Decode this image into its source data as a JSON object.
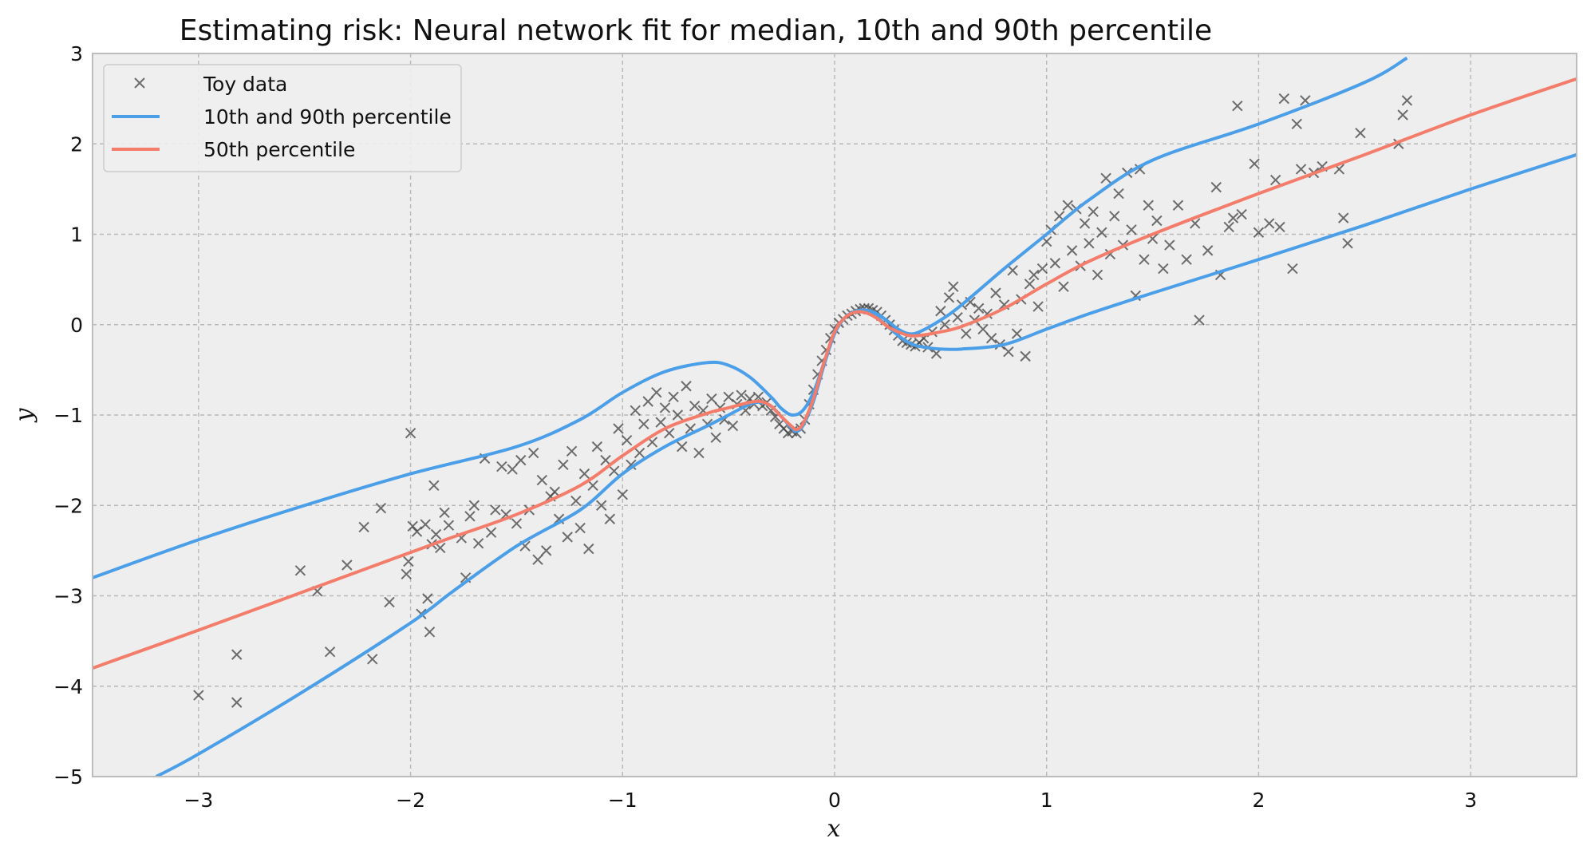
{
  "chart_data": {
    "type": "line",
    "title": "Estimating risk: Neural network fit for median, 10th and 90th percentile",
    "xlabel": "x",
    "ylabel": "y",
    "xlim": [
      -3.5,
      3.5
    ],
    "ylim": [
      -5,
      3
    ],
    "xticks": [
      -3,
      -2,
      -1,
      0,
      1,
      2,
      3
    ],
    "xtick_labels": [
      "−3",
      "−2",
      "−1",
      "0",
      "1",
      "2",
      "3"
    ],
    "yticks": [
      -5,
      -4,
      -3,
      -2,
      -1,
      0,
      1,
      2,
      3
    ],
    "ytick_labels": [
      "−5",
      "−4",
      "−3",
      "−2",
      "−1",
      "0",
      "1",
      "2",
      "3"
    ],
    "grid": true,
    "legend_position": "top-left",
    "colors": {
      "background": "#eeeeee",
      "grid": "#b8b8b8",
      "frame": "#bcbcbc",
      "scatter": "#404040",
      "percentile_10_90": "#4a9fe8",
      "percentile_50": "#f47c6a"
    },
    "series": [
      {
        "name": "Toy data",
        "kind": "scatter",
        "marker": "x",
        "points": [
          [
            -3.0,
            -4.1
          ],
          [
            -2.82,
            -3.65
          ],
          [
            -2.82,
            -4.18
          ],
          [
            -2.52,
            -2.72
          ],
          [
            -2.44,
            -2.95
          ],
          [
            -2.38,
            -3.62
          ],
          [
            -2.3,
            -2.66
          ],
          [
            -2.22,
            -2.24
          ],
          [
            -2.18,
            -3.7
          ],
          [
            -2.14,
            -2.03
          ],
          [
            -2.1,
            -3.07
          ],
          [
            -2.02,
            -2.76
          ],
          [
            -2.01,
            -2.62
          ],
          [
            -2.0,
            -1.2
          ],
          [
            -1.99,
            -2.23
          ],
          [
            -1.97,
            -2.29
          ],
          [
            -1.95,
            -3.2
          ],
          [
            -1.93,
            -2.21
          ],
          [
            -1.92,
            -3.03
          ],
          [
            -1.91,
            -3.4
          ],
          [
            -1.9,
            -2.43
          ],
          [
            -1.89,
            -1.78
          ],
          [
            -1.88,
            -2.32
          ],
          [
            -1.86,
            -2.47
          ],
          [
            -1.84,
            -2.08
          ],
          [
            -1.82,
            -2.22
          ],
          [
            -1.76,
            -2.36
          ],
          [
            -1.74,
            -2.8
          ],
          [
            -1.72,
            -2.12
          ],
          [
            -1.7,
            -2.0
          ],
          [
            -1.68,
            -2.42
          ],
          [
            -1.65,
            -1.48
          ],
          [
            -1.62,
            -2.3
          ],
          [
            -1.6,
            -2.05
          ],
          [
            -1.57,
            -1.57
          ],
          [
            -1.55,
            -2.1
          ],
          [
            -1.52,
            -1.6
          ],
          [
            -1.5,
            -2.2
          ],
          [
            -1.48,
            -1.5
          ],
          [
            -1.46,
            -2.45
          ],
          [
            -1.44,
            -2.05
          ],
          [
            -1.42,
            -1.42
          ],
          [
            -1.4,
            -2.6
          ],
          [
            -1.38,
            -1.72
          ],
          [
            -1.36,
            -2.5
          ],
          [
            -1.34,
            -1.9
          ],
          [
            -1.32,
            -1.85
          ],
          [
            -1.3,
            -2.15
          ],
          [
            -1.28,
            -1.55
          ],
          [
            -1.26,
            -2.35
          ],
          [
            -1.24,
            -1.4
          ],
          [
            -1.22,
            -1.95
          ],
          [
            -1.2,
            -2.25
          ],
          [
            -1.18,
            -1.65
          ],
          [
            -1.16,
            -2.48
          ],
          [
            -1.14,
            -1.78
          ],
          [
            -1.12,
            -1.35
          ],
          [
            -1.1,
            -2.0
          ],
          [
            -1.08,
            -1.5
          ],
          [
            -1.06,
            -2.15
          ],
          [
            -1.04,
            -1.62
          ],
          [
            -1.02,
            -1.15
          ],
          [
            -1.0,
            -1.88
          ],
          [
            -0.98,
            -1.28
          ],
          [
            -0.96,
            -1.55
          ],
          [
            -0.94,
            -0.95
          ],
          [
            -0.92,
            -1.42
          ],
          [
            -0.9,
            -1.1
          ],
          [
            -0.88,
            -0.85
          ],
          [
            -0.86,
            -1.3
          ],
          [
            -0.84,
            -0.75
          ],
          [
            -0.82,
            -1.08
          ],
          [
            -0.8,
            -0.92
          ],
          [
            -0.78,
            -1.2
          ],
          [
            -0.76,
            -0.8
          ],
          [
            -0.74,
            -1.0
          ],
          [
            -0.72,
            -1.35
          ],
          [
            -0.7,
            -0.68
          ],
          [
            -0.68,
            -1.15
          ],
          [
            -0.66,
            -0.9
          ],
          [
            -0.64,
            -1.42
          ],
          [
            -0.62,
            -0.95
          ],
          [
            -0.6,
            -1.1
          ],
          [
            -0.58,
            -0.82
          ],
          [
            -0.56,
            -1.25
          ],
          [
            -0.54,
            -0.92
          ],
          [
            -0.52,
            -1.05
          ],
          [
            -0.5,
            -0.8
          ],
          [
            -0.48,
            -1.12
          ],
          [
            -0.46,
            -0.88
          ],
          [
            -0.44,
            -0.78
          ],
          [
            -0.42,
            -0.95
          ],
          [
            -0.4,
            -0.82
          ],
          [
            -0.38,
            -0.88
          ],
          [
            -0.36,
            -0.8
          ],
          [
            -0.34,
            -0.9
          ],
          [
            -0.32,
            -0.86
          ],
          [
            -0.3,
            -0.95
          ],
          [
            -0.28,
            -1.02
          ],
          [
            -0.26,
            -1.1
          ],
          [
            -0.24,
            -1.15
          ],
          [
            -0.22,
            -1.2
          ],
          [
            -0.2,
            -1.18
          ],
          [
            -0.18,
            -1.2
          ],
          [
            -0.16,
            -1.15
          ],
          [
            -0.14,
            -1.05
          ],
          [
            -0.12,
            -0.88
          ],
          [
            -0.1,
            -0.72
          ],
          [
            -0.08,
            -0.55
          ],
          [
            -0.06,
            -0.4
          ],
          [
            -0.04,
            -0.28
          ],
          [
            -0.02,
            -0.15
          ],
          [
            0.0,
            -0.05
          ],
          [
            0.02,
            0.02
          ],
          [
            0.04,
            0.06
          ],
          [
            0.06,
            0.1
          ],
          [
            0.08,
            0.12
          ],
          [
            0.1,
            0.15
          ],
          [
            0.12,
            0.17
          ],
          [
            0.14,
            0.18
          ],
          [
            0.16,
            0.18
          ],
          [
            0.18,
            0.16
          ],
          [
            0.2,
            0.14
          ],
          [
            0.22,
            0.1
          ],
          [
            0.24,
            0.05
          ],
          [
            0.26,
            0.0
          ],
          [
            0.28,
            -0.06
          ],
          [
            0.3,
            -0.12
          ],
          [
            0.32,
            -0.18
          ],
          [
            0.34,
            -0.2
          ],
          [
            0.36,
            -0.22
          ],
          [
            0.38,
            -0.24
          ],
          [
            0.4,
            -0.2
          ],
          [
            0.42,
            -0.15
          ],
          [
            0.44,
            -0.25
          ],
          [
            0.46,
            -0.08
          ],
          [
            0.48,
            -0.32
          ],
          [
            0.5,
            0.15
          ],
          [
            0.52,
            0.0
          ],
          [
            0.54,
            0.3
          ],
          [
            0.56,
            0.42
          ],
          [
            0.58,
            0.08
          ],
          [
            0.6,
            0.22
          ],
          [
            0.62,
            -0.1
          ],
          [
            0.64,
            0.25
          ],
          [
            0.66,
            0.05
          ],
          [
            0.68,
            0.18
          ],
          [
            0.7,
            -0.05
          ],
          [
            0.72,
            0.12
          ],
          [
            0.74,
            -0.15
          ],
          [
            0.76,
            0.35
          ],
          [
            0.78,
            -0.22
          ],
          [
            0.8,
            0.22
          ],
          [
            0.82,
            -0.3
          ],
          [
            0.84,
            0.6
          ],
          [
            0.86,
            -0.1
          ],
          [
            0.88,
            0.28
          ],
          [
            0.9,
            -0.35
          ],
          [
            0.92,
            0.45
          ],
          [
            0.94,
            0.55
          ],
          [
            0.96,
            0.2
          ],
          [
            0.98,
            0.62
          ],
          [
            1.0,
            0.92
          ],
          [
            1.02,
            1.05
          ],
          [
            1.04,
            0.68
          ],
          [
            1.06,
            1.2
          ],
          [
            1.08,
            0.42
          ],
          [
            1.1,
            1.32
          ],
          [
            1.12,
            0.82
          ],
          [
            1.14,
            1.28
          ],
          [
            1.16,
            0.65
          ],
          [
            1.18,
            1.12
          ],
          [
            1.2,
            0.9
          ],
          [
            1.22,
            1.25
          ],
          [
            1.24,
            0.55
          ],
          [
            1.26,
            1.02
          ],
          [
            1.28,
            1.62
          ],
          [
            1.3,
            0.78
          ],
          [
            1.32,
            1.2
          ],
          [
            1.34,
            1.45
          ],
          [
            1.36,
            0.88
          ],
          [
            1.38,
            1.68
          ],
          [
            1.4,
            1.05
          ],
          [
            1.42,
            0.32
          ],
          [
            1.44,
            1.72
          ],
          [
            1.46,
            0.72
          ],
          [
            1.48,
            1.32
          ],
          [
            1.5,
            0.95
          ],
          [
            1.52,
            1.15
          ],
          [
            1.55,
            0.62
          ],
          [
            1.58,
            0.88
          ],
          [
            1.62,
            1.32
          ],
          [
            1.66,
            0.72
          ],
          [
            1.7,
            1.12
          ],
          [
            1.72,
            0.05
          ],
          [
            1.76,
            0.82
          ],
          [
            1.8,
            1.52
          ],
          [
            1.82,
            0.55
          ],
          [
            1.86,
            1.08
          ],
          [
            1.88,
            1.18
          ],
          [
            1.9,
            2.42
          ],
          [
            1.92,
            1.22
          ],
          [
            1.98,
            1.78
          ],
          [
            2.0,
            1.02
          ],
          [
            2.05,
            1.12
          ],
          [
            2.08,
            1.6
          ],
          [
            2.1,
            1.08
          ],
          [
            2.12,
            2.5
          ],
          [
            2.16,
            0.62
          ],
          [
            2.18,
            2.22
          ],
          [
            2.2,
            1.72
          ],
          [
            2.22,
            2.48
          ],
          [
            2.26,
            1.68
          ],
          [
            2.3,
            1.75
          ],
          [
            2.38,
            1.72
          ],
          [
            2.4,
            1.18
          ],
          [
            2.42,
            0.9
          ],
          [
            2.48,
            2.12
          ],
          [
            2.66,
            2.0
          ],
          [
            2.68,
            2.32
          ],
          [
            2.7,
            2.48
          ]
        ]
      },
      {
        "name": "10th and 90th percentile",
        "kind": "line",
        "lower": {
          "x": [
            -3.2,
            -3.0,
            -2.5,
            -2.0,
            -1.8,
            -1.5,
            -1.2,
            -1.0,
            -0.8,
            -0.6,
            -0.5,
            -0.4,
            -0.35,
            -0.3,
            -0.25,
            -0.2,
            -0.18,
            -0.15,
            -0.1,
            -0.05,
            0.0,
            0.05,
            0.1,
            0.15,
            0.2,
            0.25,
            0.3,
            0.35,
            0.4,
            0.5,
            0.6,
            0.8,
            1.0,
            1.2,
            1.5,
            2.0,
            2.5,
            3.0,
            3.5
          ],
          "y": [
            -5.0,
            -4.75,
            -4.05,
            -3.3,
            -2.95,
            -2.45,
            -2.05,
            -1.65,
            -1.35,
            -1.12,
            -1.0,
            -0.88,
            -0.86,
            -0.9,
            -1.02,
            -1.15,
            -1.18,
            -1.12,
            -0.85,
            -0.45,
            -0.1,
            0.08,
            0.15,
            0.14,
            0.08,
            -0.02,
            -0.12,
            -0.2,
            -0.24,
            -0.27,
            -0.27,
            -0.22,
            -0.05,
            0.12,
            0.35,
            0.72,
            1.1,
            1.5,
            1.88
          ]
        },
        "upper": {
          "x": [
            -3.5,
            -3.0,
            -2.5,
            -2.0,
            -1.5,
            -1.2,
            -1.0,
            -0.8,
            -0.6,
            -0.5,
            -0.4,
            -0.3,
            -0.25,
            -0.2,
            -0.15,
            -0.1,
            -0.05,
            0.0,
            0.05,
            0.1,
            0.15,
            0.2,
            0.25,
            0.3,
            0.35,
            0.4,
            0.5,
            0.6,
            0.8,
            1.0,
            1.2,
            1.5,
            2.0,
            2.5,
            2.7
          ],
          "y": [
            -2.8,
            -2.38,
            -2.0,
            -1.65,
            -1.35,
            -1.05,
            -0.75,
            -0.52,
            -0.42,
            -0.45,
            -0.58,
            -0.8,
            -0.93,
            -1.0,
            -0.95,
            -0.75,
            -0.42,
            -0.08,
            0.08,
            0.15,
            0.16,
            0.12,
            0.04,
            -0.05,
            -0.1,
            -0.08,
            0.05,
            0.22,
            0.62,
            1.0,
            1.38,
            1.82,
            2.22,
            2.68,
            2.95
          ]
        }
      },
      {
        "name": "50th percentile",
        "kind": "line",
        "x": [
          -3.5,
          -3.0,
          -2.5,
          -2.0,
          -1.8,
          -1.5,
          -1.2,
          -1.0,
          -0.8,
          -0.6,
          -0.5,
          -0.4,
          -0.35,
          -0.3,
          -0.25,
          -0.2,
          -0.18,
          -0.15,
          -0.1,
          -0.05,
          0.0,
          0.05,
          0.1,
          0.15,
          0.2,
          0.25,
          0.3,
          0.35,
          0.4,
          0.5,
          0.6,
          0.8,
          1.0,
          1.2,
          1.5,
          2.0,
          2.5,
          3.0,
          3.5
        ],
        "y": [
          -3.8,
          -3.38,
          -2.95,
          -2.52,
          -2.35,
          -2.1,
          -1.78,
          -1.45,
          -1.15,
          -0.98,
          -0.92,
          -0.86,
          -0.85,
          -0.9,
          -1.02,
          -1.13,
          -1.16,
          -1.1,
          -0.82,
          -0.42,
          -0.08,
          0.08,
          0.14,
          0.13,
          0.07,
          -0.02,
          -0.08,
          -0.12,
          -0.12,
          -0.08,
          -0.02,
          0.18,
          0.45,
          0.7,
          1.0,
          1.45,
          1.88,
          2.32,
          2.72
        ]
      }
    ]
  }
}
